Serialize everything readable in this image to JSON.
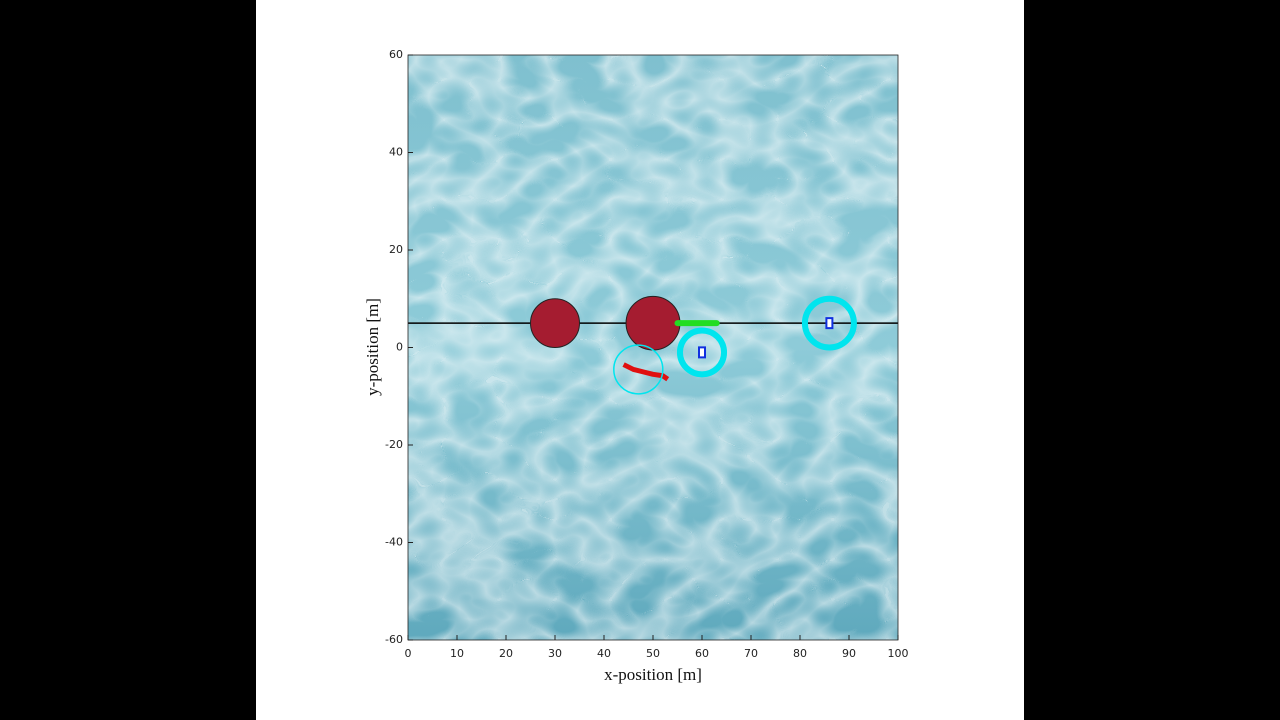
{
  "chart_data": {
    "type": "scatter",
    "x_label": "x-position [m]",
    "y_label": "y-position [m]",
    "xlim": [
      0,
      100
    ],
    "ylim": [
      -60,
      60
    ],
    "xticks": [
      0,
      10,
      20,
      30,
      40,
      50,
      60,
      70,
      80,
      90,
      100
    ],
    "yticks": [
      -60,
      -40,
      -20,
      0,
      20,
      40,
      60
    ],
    "reference_line": {
      "y": 5,
      "color": "#000000"
    },
    "obstacles": {
      "color": "#a51c30",
      "x": [
        30,
        50
      ],
      "y": [
        5,
        5
      ],
      "r": [
        5,
        5.5
      ]
    },
    "vessels": {
      "color": "#00e5ee",
      "x": [
        47,
        60,
        86
      ],
      "y": [
        -4.5,
        -1,
        5
      ],
      "r": [
        5,
        4.5,
        5
      ]
    },
    "planned_path": {
      "color": "#22dd22",
      "x": [
        55,
        63
      ],
      "y": [
        5,
        5
      ]
    },
    "trail": {
      "color": "#e01010",
      "x": [
        44,
        46,
        48,
        50,
        52,
        53
      ],
      "y": [
        -3.5,
        -4.5,
        -5,
        -5.5,
        -5.8,
        -6.5
      ]
    }
  }
}
